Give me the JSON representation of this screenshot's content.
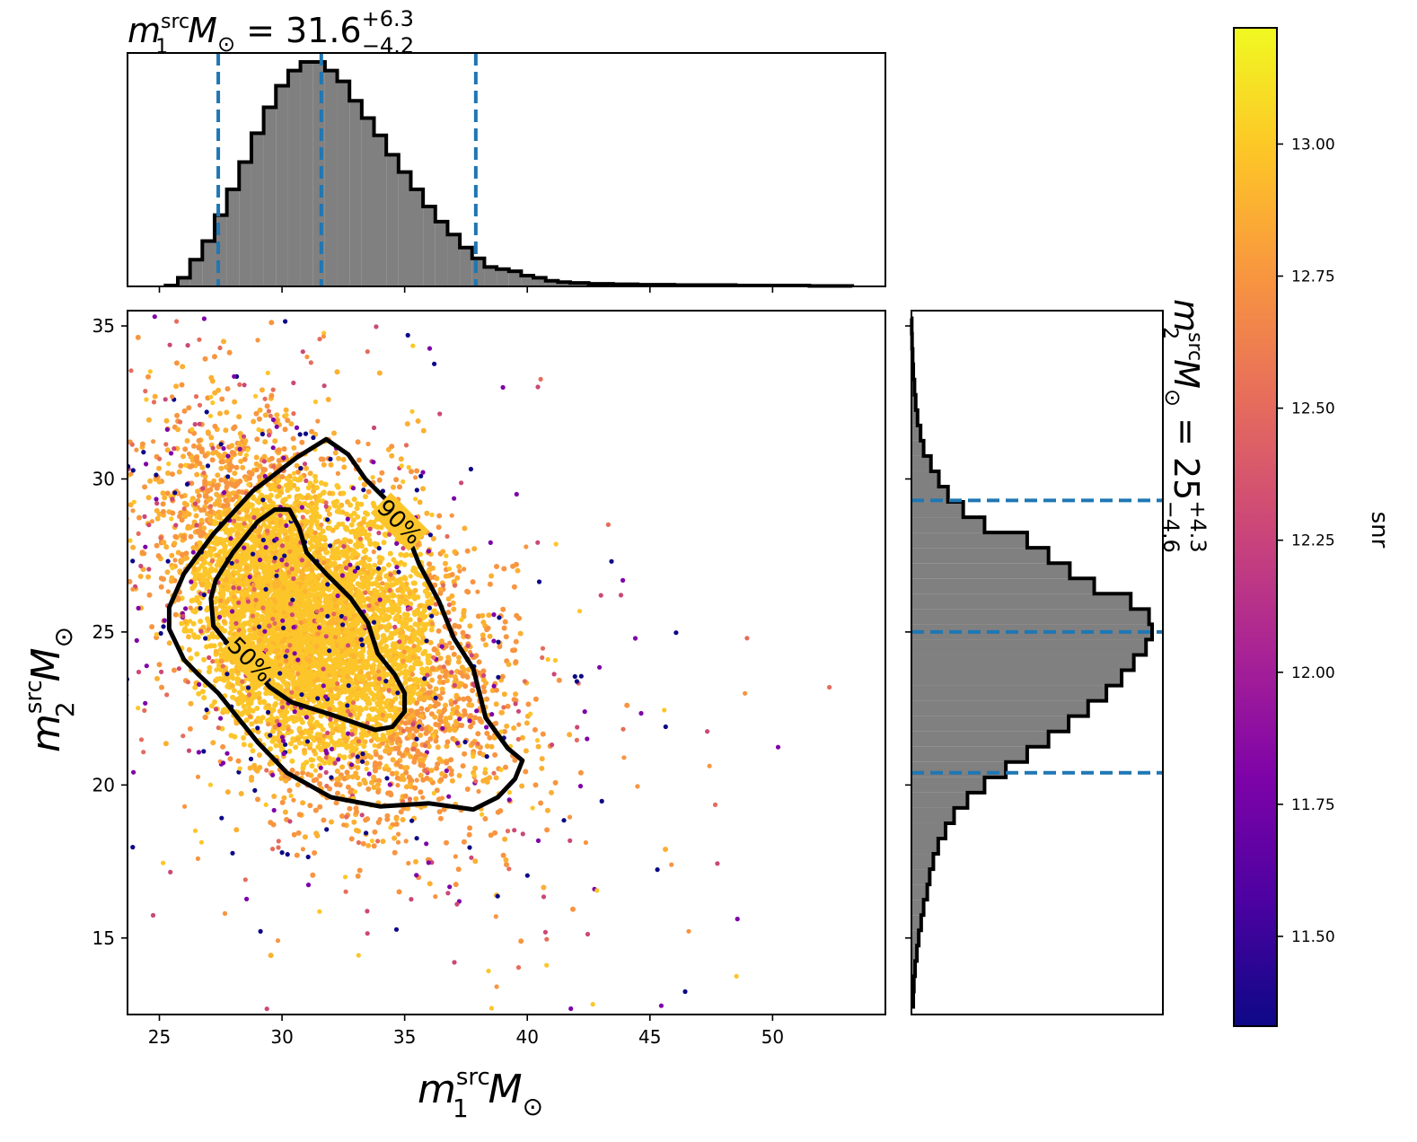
{
  "chart_data": [
    {
      "type": "histogram",
      "panel": "top-marginal",
      "title_parts": {
        "var": "m",
        "sup": "src",
        "sub": "1",
        "unit": "M",
        "unit_sub": "⊙",
        "eq": "= 31.6",
        "plus": "+6.3",
        "minus": "−4.2"
      },
      "xlim": [
        23.7,
        54.6
      ],
      "x": [
        25.5,
        26.0,
        26.5,
        27.0,
        27.5,
        28.0,
        28.5,
        29.0,
        29.5,
        30.0,
        30.5,
        31.0,
        31.5,
        32.0,
        32.5,
        33.0,
        33.5,
        34.0,
        34.5,
        35.0,
        35.5,
        36.0,
        36.5,
        37.0,
        37.5,
        38.0,
        38.5,
        39.0,
        39.5,
        40.0,
        40.5,
        41.0,
        41.5,
        42.0,
        43.0,
        44.0,
        45.0,
        47.0,
        50.0,
        53.0
      ],
      "values": [
        0.2,
        2.0,
        6.2,
        10.5,
        16.5,
        22.5,
        28.8,
        35.5,
        41.5,
        46.5,
        50.0,
        52.0,
        52.0,
        50.0,
        47.5,
        43.0,
        39.0,
        35.0,
        30.5,
        26.5,
        22.5,
        18.5,
        15.0,
        12.0,
        9.0,
        6.5,
        4.5,
        4.0,
        3.5,
        2.5,
        2.0,
        1.3,
        1.0,
        0.8,
        0.6,
        0.5,
        0.4,
        0.3,
        0.2,
        0.1
      ],
      "quantiles": [
        27.4,
        31.6,
        37.9
      ],
      "color_fill": "#808080",
      "color_quantile": "#1f77b4"
    },
    {
      "type": "histogram",
      "panel": "right-marginal",
      "orientation": "horizontal",
      "title_parts": {
        "var": "m",
        "sup": "src",
        "sub": "2",
        "unit": "M",
        "unit_sub": "⊙",
        "eq": "= 25",
        "plus": "+4.3",
        "minus": "−4.6"
      },
      "ylim": [
        12.5,
        35.5
      ],
      "y": [
        13.0,
        13.5,
        14.0,
        14.5,
        15.0,
        15.5,
        16.0,
        16.5,
        17.0,
        17.5,
        18.0,
        18.5,
        19.0,
        19.5,
        20.0,
        20.5,
        21.0,
        21.5,
        22.0,
        22.5,
        23.0,
        23.5,
        24.0,
        24.5,
        25.0,
        25.5,
        26.0,
        26.5,
        27.0,
        27.5,
        28.0,
        28.5,
        29.0,
        29.5,
        30.0,
        30.5,
        31.0,
        31.5,
        32.0,
        32.5,
        33.0,
        33.5,
        34.0,
        34.5,
        35.0
      ],
      "values": [
        0.3,
        0.4,
        0.6,
        0.9,
        1.2,
        1.6,
        2.0,
        2.6,
        3.0,
        3.6,
        4.4,
        5.6,
        7.0,
        9.2,
        12.0,
        15.5,
        19.0,
        22.5,
        25.8,
        29.0,
        32.0,
        34.5,
        36.5,
        38.5,
        39.5,
        39.0,
        36.0,
        30.0,
        26.0,
        22.5,
        19.0,
        12.0,
        8.5,
        6.0,
        4.5,
        3.2,
        2.0,
        1.5,
        1.0,
        0.7,
        0.5,
        0.3,
        0.2,
        0.1,
        0.05
      ],
      "quantiles": [
        20.4,
        25.0,
        29.3
      ],
      "color_fill": "#808080",
      "color_quantile": "#1f77b4"
    },
    {
      "type": "scatter",
      "panel": "joint",
      "xlim": [
        23.7,
        54.6
      ],
      "ylim": [
        12.5,
        35.5
      ],
      "xticks": [
        "25",
        "30",
        "35",
        "40",
        "45",
        "50"
      ],
      "yticks": [
        "15",
        "20",
        "25",
        "30",
        "35"
      ],
      "xlabel_parts": {
        "var": "m",
        "sup": "src",
        "sub": "1",
        "unit": "M",
        "unit_sub": "⊙"
      },
      "ylabel_parts": {
        "var": "m",
        "sup": "src",
        "sub": "2",
        "unit": "M",
        "unit_sub": "⊙"
      },
      "color_variable": "snr",
      "contours": [
        {
          "label": "50%",
          "points": [
            [
              27.1,
              26.1
            ],
            [
              27.3,
              26.7
            ],
            [
              28.0,
              27.6
            ],
            [
              29.0,
              28.6
            ],
            [
              29.7,
              29.0
            ],
            [
              30.3,
              29.0
            ],
            [
              30.7,
              28.4
            ],
            [
              31.0,
              27.6
            ],
            [
              31.8,
              26.9
            ],
            [
              32.8,
              26.1
            ],
            [
              33.5,
              25.3
            ],
            [
              33.9,
              24.3
            ],
            [
              34.6,
              23.6
            ],
            [
              35.0,
              23.0
            ],
            [
              35.0,
              22.4
            ],
            [
              34.5,
              21.9
            ],
            [
              33.8,
              21.8
            ],
            [
              32.0,
              22.3
            ],
            [
              30.4,
              22.7
            ],
            [
              29.5,
              23.2
            ],
            [
              28.5,
              24.1
            ],
            [
              27.8,
              24.6
            ],
            [
              27.2,
              25.2
            ],
            [
              27.1,
              26.1
            ]
          ],
          "label_at": [
            28.7,
            24.1
          ]
        },
        {
          "label": "90%",
          "points": [
            [
              25.4,
              25.1
            ],
            [
              25.4,
              25.8
            ],
            [
              26.0,
              26.9
            ],
            [
              27.2,
              28.2
            ],
            [
              28.8,
              29.6
            ],
            [
              30.6,
              30.7
            ],
            [
              31.8,
              31.3
            ],
            [
              32.7,
              30.8
            ],
            [
              33.4,
              30.0
            ],
            [
              34.4,
              29.2
            ],
            [
              35.0,
              28.4
            ],
            [
              35.6,
              27.2
            ],
            [
              36.4,
              26.0
            ],
            [
              37.0,
              24.8
            ],
            [
              37.8,
              23.8
            ],
            [
              38.3,
              22.2
            ],
            [
              39.2,
              21.2
            ],
            [
              39.8,
              20.8
            ],
            [
              39.5,
              20.2
            ],
            [
              38.8,
              19.6
            ],
            [
              37.8,
              19.2
            ],
            [
              36.0,
              19.4
            ],
            [
              34.0,
              19.3
            ],
            [
              32.0,
              19.6
            ],
            [
              30.2,
              20.4
            ],
            [
              29.0,
              21.4
            ],
            [
              28.2,
              22.2
            ],
            [
              27.4,
              23.0
            ],
            [
              26.6,
              23.6
            ],
            [
              26.0,
              24.1
            ],
            [
              25.4,
              25.1
            ]
          ],
          "label_at": [
            34.8,
            28.6
          ]
        }
      ],
      "cloud": {
        "center": [
          31.0,
          25.3
        ],
        "spread": [
          3.3,
          3.0
        ],
        "correlation": -0.45,
        "count": 6000,
        "outlier_count": 900
      }
    },
    {
      "type": "colorbar",
      "label": "snr",
      "cmap": "plasma",
      "range": [
        11.33,
        13.22
      ],
      "ticks": [
        "11.50",
        "11.75",
        "12.00",
        "12.25",
        "12.50",
        "12.75",
        "13.00"
      ],
      "tick_values": [
        11.5,
        11.75,
        12.0,
        12.25,
        12.5,
        12.75,
        13.0
      ]
    }
  ]
}
